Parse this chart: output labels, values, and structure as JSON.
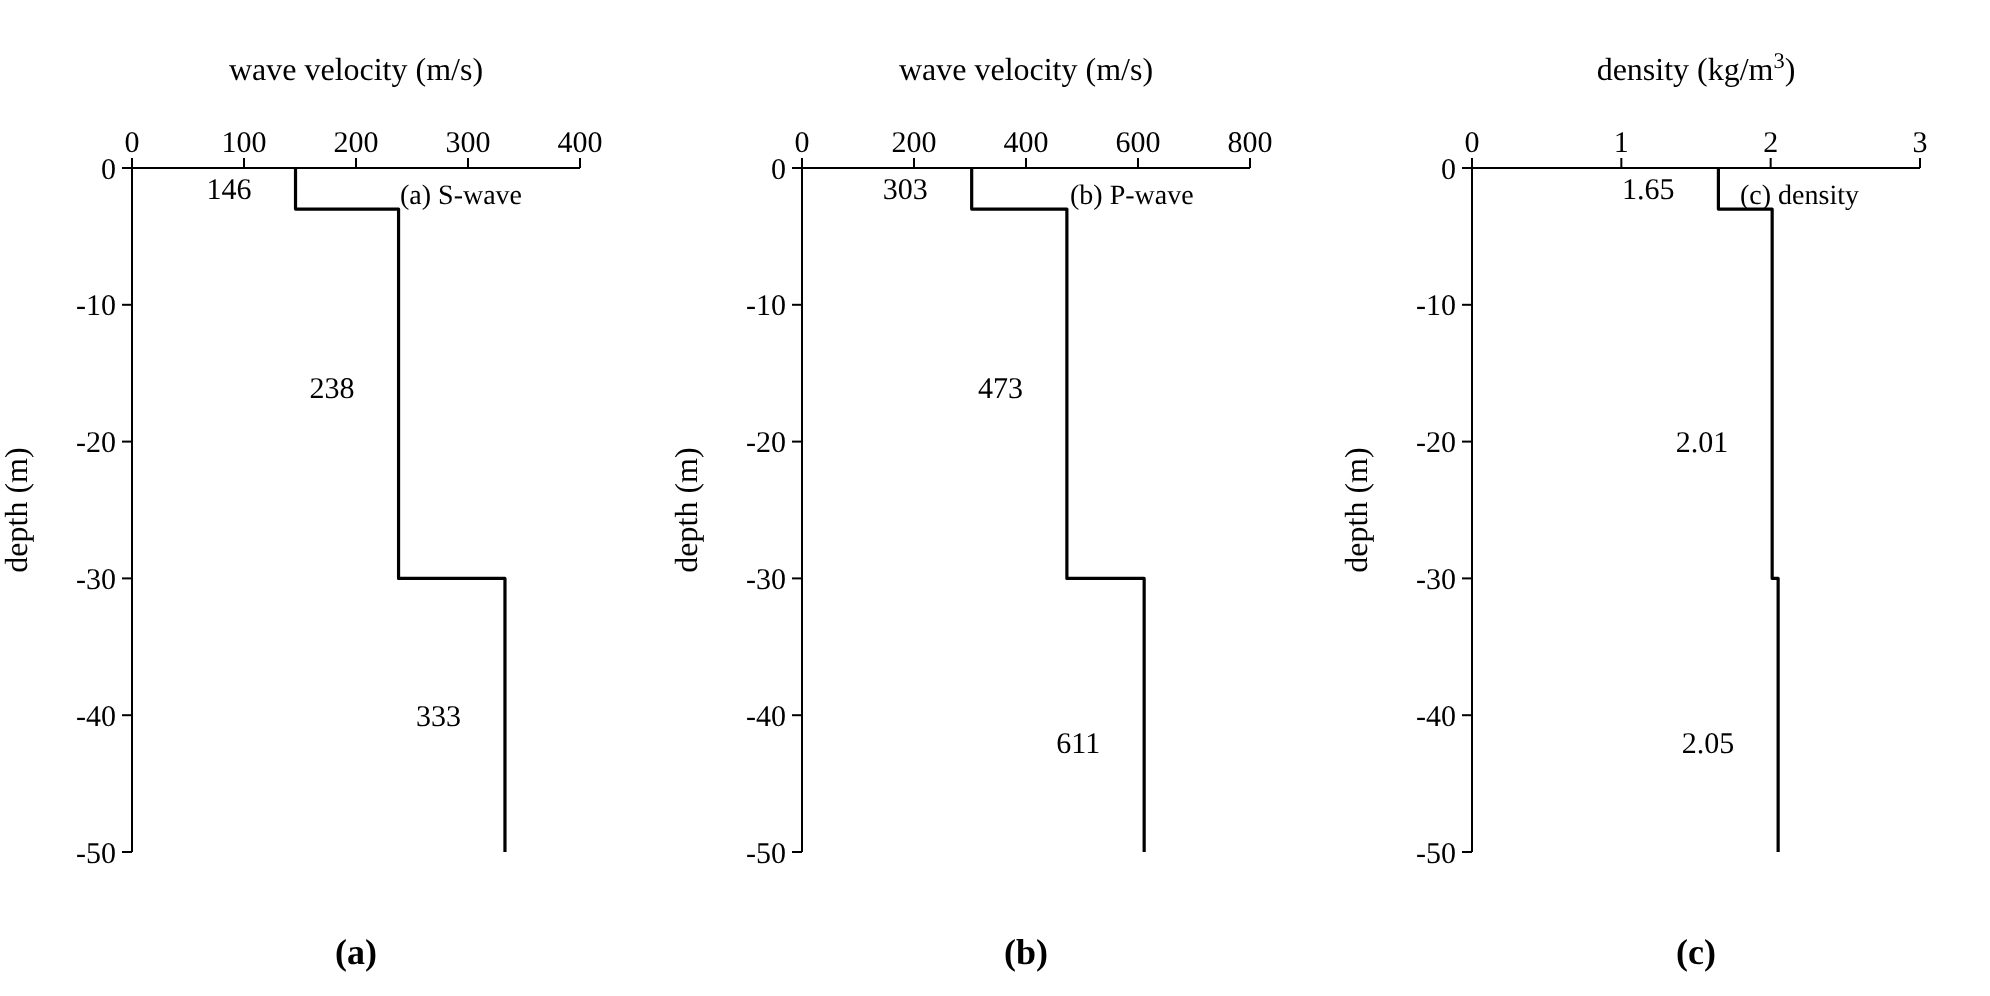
{
  "chart_data": [
    {
      "type": "line",
      "xlabel": "wave velocity (m/s)",
      "ylabel": "depth (m)",
      "xlim": [
        0,
        400
      ],
      "xticks": [
        0,
        100,
        200,
        300,
        400
      ],
      "ylim": [
        -50,
        0
      ],
      "yticks": [
        -50,
        -40,
        -30,
        -20,
        -10,
        0
      ],
      "series": [
        {
          "color": "#000000",
          "x": [
            146,
            146,
            238,
            238,
            333,
            333
          ],
          "values": [
            0,
            -3,
            -3,
            -30,
            -30,
            -50
          ]
        }
      ],
      "annotations": [
        {
          "text": "146",
          "x": 146,
          "y": -1.5
        },
        {
          "text": "238",
          "x": 238,
          "y": -16
        },
        {
          "text": "333",
          "x": 333,
          "y": -40
        },
        "(a) S-wave",
        "(a)"
      ]
    },
    {
      "type": "line",
      "xlabel": "wave velocity (m/s)",
      "ylabel": "depth (m)",
      "xlim": [
        0,
        800
      ],
      "xticks": [
        0,
        200,
        400,
        600,
        800
      ],
      "ylim": [
        -50,
        0
      ],
      "yticks": [
        -50,
        -40,
        -30,
        -20,
        -10,
        0
      ],
      "series": [
        {
          "color": "#000000",
          "x": [
            303,
            303,
            473,
            473,
            611,
            611
          ],
          "values": [
            0,
            -3,
            -3,
            -30,
            -30,
            -50
          ]
        }
      ],
      "annotations": [
        {
          "text": "303",
          "x": 303,
          "y": -1.5
        },
        {
          "text": "473",
          "x": 473,
          "y": -16
        },
        {
          "text": "611",
          "x": 611,
          "y": -42
        },
        "(b) P-wave",
        "(b)"
      ]
    },
    {
      "type": "line",
      "xlabel": "density (kg/m$^{3}$)",
      "ylabel": "depth (m)",
      "xlim": [
        0,
        3
      ],
      "xticks": [
        0,
        1,
        2,
        3
      ],
      "ylim": [
        -50,
        0
      ],
      "yticks": [
        -50,
        -40,
        -30,
        -20,
        -10,
        0
      ],
      "series": [
        {
          "color": "#000000",
          "x": [
            1.65,
            1.65,
            2.01,
            2.01,
            2.05,
            2.05
          ],
          "values": [
            0,
            -3,
            -3,
            -30,
            -30,
            -50
          ]
        }
      ],
      "annotations": [
        {
          "text": "1.65",
          "x": 1.65,
          "y": -1.5
        },
        {
          "text": "2.01",
          "x": 2.01,
          "y": -20
        },
        {
          "text": "2.05",
          "x": 2.05,
          "y": -42
        },
        "(c) density",
        "(c)"
      ]
    }
  ]
}
